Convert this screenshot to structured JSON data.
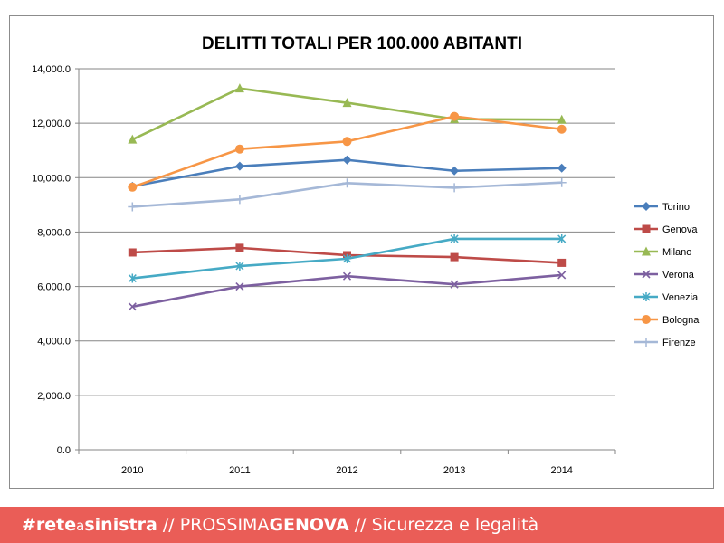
{
  "chart_data": {
    "type": "line",
    "title": "DELITTI TOTALI PER 100.000 ABITANTI",
    "categories": [
      "2010",
      "2011",
      "2012",
      "2013",
      "2014"
    ],
    "ylim": [
      0,
      14000
    ],
    "yticks": [
      "0.0",
      "2,000.0",
      "4,000.0",
      "6,000.0",
      "8,000.0",
      "10,000.0",
      "12,000.0",
      "14,000.0"
    ],
    "grid": true,
    "legend_position": "right",
    "series": [
      {
        "name": "Torino",
        "color": "#4a7ebb",
        "marker": "diamond",
        "values": [
          9680,
          10420,
          10650,
          10250,
          10350
        ]
      },
      {
        "name": "Genova",
        "color": "#be4b48",
        "marker": "square",
        "values": [
          7250,
          7420,
          7150,
          7080,
          6870
        ]
      },
      {
        "name": "Milano",
        "color": "#98b954",
        "marker": "triangle",
        "values": [
          11400,
          13280,
          12750,
          12150,
          12130
        ]
      },
      {
        "name": "Verona",
        "color": "#7d60a0",
        "marker": "x",
        "values": [
          5260,
          6000,
          6380,
          6080,
          6420
        ]
      },
      {
        "name": "Venezia",
        "color": "#46aac5",
        "marker": "star",
        "values": [
          6300,
          6750,
          7020,
          7750,
          7750
        ]
      },
      {
        "name": "Bologna",
        "color": "#f79646",
        "marker": "circle",
        "values": [
          9650,
          11050,
          11330,
          12250,
          11780
        ]
      },
      {
        "name": "Firenze",
        "color": "#a5b8d7",
        "marker": "plus",
        "values": [
          8930,
          9200,
          9800,
          9630,
          9820
        ]
      }
    ]
  },
  "footer": {
    "hashtag_prefix": "#rete",
    "hashtag_a": "a",
    "hashtag_suffix": "sinistra",
    "sep1": " // ",
    "prossima": "PROSSIMA",
    "genova": "GENOVA",
    "sep2": " // ",
    "topic": "Sicurezza e legalità",
    "color": "#ea5d57"
  }
}
